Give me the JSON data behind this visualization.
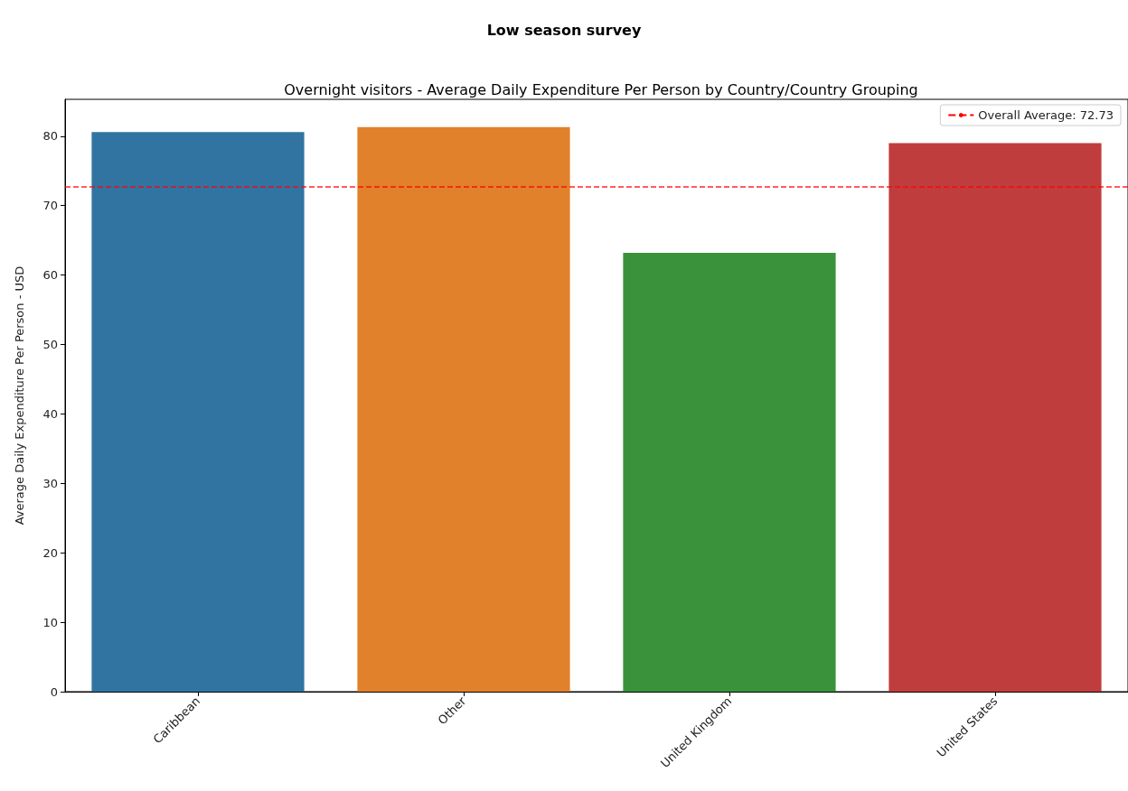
{
  "chart_data": {
    "type": "bar",
    "title": "Low season survey",
    "subtitle": "Overnight visitors - Average Daily Expenditure Per Person by Country/Country Grouping",
    "ylabel": "Average Daily Expenditure Per Person - USD",
    "categories": [
      "Caribbean",
      "Other",
      "United Kingdom",
      "United States"
    ],
    "values": [
      80.6,
      81.3,
      63.2,
      79.0
    ],
    "colors": [
      "#3274a1",
      "#e1812c",
      "#3a923a",
      "#c03d3e"
    ],
    "ylim": [
      0,
      85.3
    ],
    "yticks": [
      0,
      10,
      20,
      30,
      40,
      50,
      60,
      70,
      80
    ],
    "grid": false,
    "legend": "top right",
    "ref_lines": [
      {
        "axis": "y",
        "value": 72.73,
        "label": "Overall Average: 72.73",
        "color": "#ff0000",
        "line_style": "dashed"
      }
    ]
  }
}
